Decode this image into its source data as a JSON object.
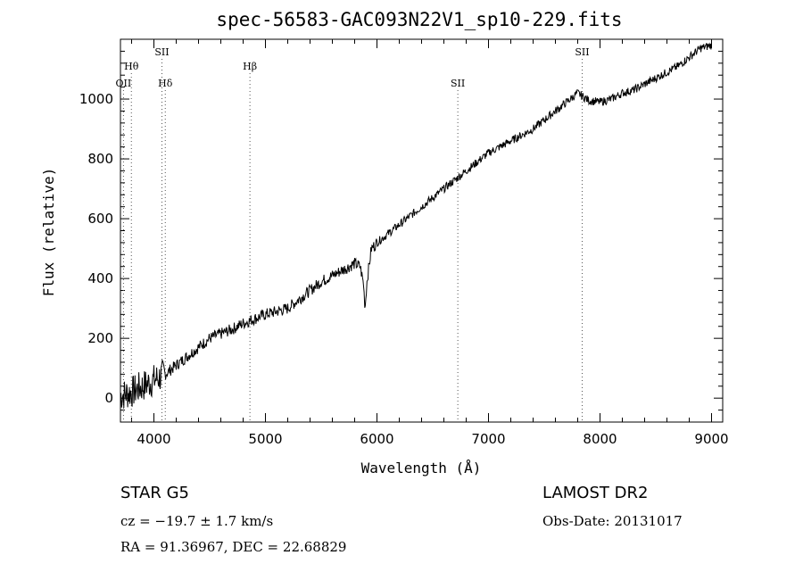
{
  "title": "spec-56583-GAC093N22V1_sp10-229.fits",
  "info": {
    "object_class": "STAR   G5",
    "survey": "LAMOST DR2",
    "cz": "cz = −19.7 ± 1.7 km/s",
    "obs_date": "Obs-Date: 20131017",
    "radec": "RA =  91.36967, DEC =  22.68829"
  },
  "chart_data": {
    "type": "line",
    "title": "spec-56583-GAC093N22V1_sp10-229.fits",
    "xlabel": "Wavelength (Å)",
    "ylabel": "Flux (relative)",
    "xlim": [
      3700,
      9100
    ],
    "ylim": [
      -80,
      1200
    ],
    "xticks": [
      4000,
      5000,
      6000,
      7000,
      8000,
      9000
    ],
    "yticks": [
      0,
      200,
      400,
      600,
      800,
      1000
    ],
    "grid": false,
    "series": [
      {
        "x": [
          3700,
          3800,
          3900,
          4000,
          4100,
          4200,
          4300,
          4400,
          4500,
          4600,
          4700,
          4800,
          4900,
          5000,
          5100,
          5200,
          5300,
          5400,
          5500,
          5600,
          5700,
          5800,
          5850,
          5880,
          5893,
          5910,
          5950,
          6000,
          6100,
          6200,
          6300,
          6400,
          6500,
          6600,
          6700,
          6800,
          6900,
          7000,
          7100,
          7200,
          7300,
          7400,
          7500,
          7600,
          7700,
          7800,
          7840,
          7900,
          8000,
          8100,
          8200,
          8300,
          8400,
          8500,
          8600,
          8700,
          8800,
          8900,
          9000
        ],
        "y": [
          10,
          20,
          40,
          60,
          80,
          110,
          140,
          170,
          200,
          215,
          230,
          250,
          265,
          280,
          290,
          300,
          330,
          360,
          390,
          410,
          430,
          450,
          440,
          380,
          300,
          390,
          500,
          520,
          550,
          580,
          610,
          640,
          670,
          700,
          730,
          760,
          790,
          820,
          840,
          860,
          880,
          900,
          930,
          960,
          990,
          1020,
          1010,
          995,
          990,
          1000,
          1020,
          1030,
          1050,
          1070,
          1090,
          1110,
          1140,
          1170,
          1180
        ]
      }
    ],
    "line_labels": [
      {
        "name": "OII",
        "x": 3727,
        "tier": 3
      },
      {
        "name": "Hθ",
        "x": 3798,
        "tier": 2
      },
      {
        "name": "SII",
        "x": 4072,
        "tier": 1
      },
      {
        "name": "Hδ",
        "x": 4102,
        "tier": 3
      },
      {
        "name": "Hβ",
        "x": 4861,
        "tier": 2
      },
      {
        "name": "SII",
        "x": 6725,
        "tier": 3
      },
      {
        "name": "SII",
        "x": 7840,
        "tier": 1
      }
    ]
  }
}
